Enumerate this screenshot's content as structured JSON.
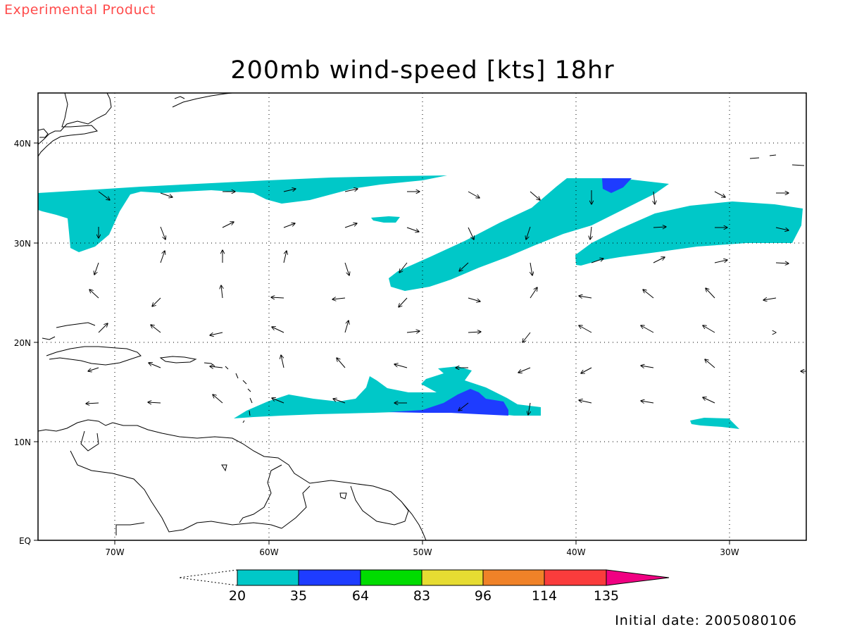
{
  "banner": "Experimental Product",
  "title": "200mb wind-speed [kts] 18hr",
  "initial_date": "Initial date: 2005080106",
  "map": {
    "lon_labels": [
      "70W",
      "60W",
      "50W",
      "40W",
      "30W"
    ],
    "lat_labels": [
      "EQ",
      "10N",
      "20N",
      "30N",
      "40N"
    ],
    "contour_colors": [
      "#00c8c8",
      "#1e3cff"
    ],
    "land_outline_color": "#000000",
    "grid": "dotted",
    "vector_field": "wind arrows"
  },
  "colorbar": {
    "labels": [
      "20",
      "35",
      "64",
      "83",
      "96",
      "114",
      "135"
    ],
    "colors": [
      "#00c8c8",
      "#1e3cff",
      "#00dc00",
      "#e6dc32",
      "#f08228",
      "#fa3c3c",
      "#f00082"
    ],
    "below_color": "#ffffff",
    "placement": "bottom"
  },
  "chart_data": {
    "type": "heatmap",
    "title": "200mb wind-speed [kts] 18hr",
    "xlabel": "",
    "ylabel": "",
    "x_ticks": [
      "70W",
      "60W",
      "50W",
      "40W",
      "30W"
    ],
    "y_ticks": [
      "EQ",
      "10N",
      "20N",
      "30N",
      "40N"
    ],
    "xlim": [
      "75W",
      "25W"
    ],
    "ylim": [
      "EQ",
      "45N"
    ],
    "levels": [
      20,
      35,
      64,
      83,
      96,
      114,
      135
    ],
    "units": "kts",
    "grid": true,
    "legend": "bottom colorbar"
  }
}
